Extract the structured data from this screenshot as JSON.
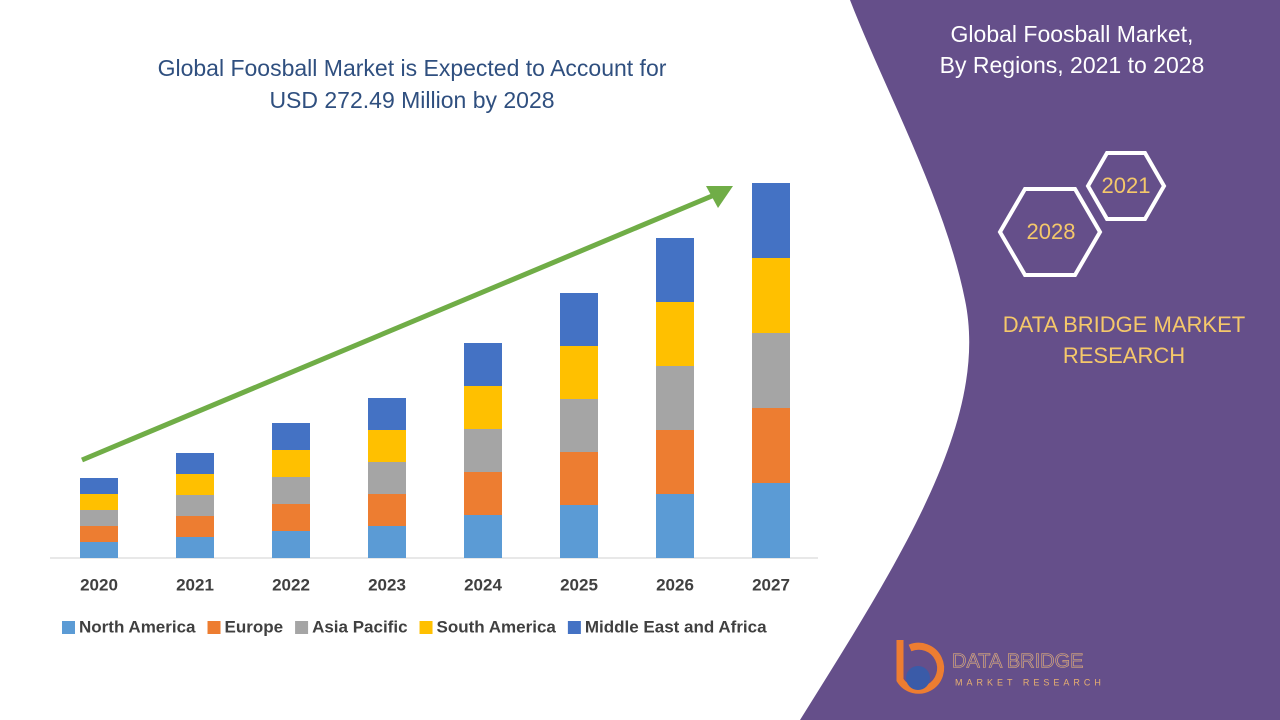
{
  "chart_data": {
    "type": "bar",
    "stacked": true,
    "title": "Global Foosball Market is Expected to Account for USD 272.49 Million by 2028",
    "categories": [
      "2020",
      "2021",
      "2022",
      "2023",
      "2024",
      "2025",
      "2026",
      "2027"
    ],
    "series": [
      {
        "name": "North America",
        "color": "#5b9bd5",
        "values": [
          16,
          21,
          27,
          32,
          43,
          53,
          64,
          75
        ]
      },
      {
        "name": "Europe",
        "color": "#ed7d31",
        "values": [
          16,
          21,
          27,
          32,
          43,
          53,
          64,
          75
        ]
      },
      {
        "name": "Asia Pacific",
        "color": "#a5a5a5",
        "values": [
          16,
          21,
          27,
          32,
          43,
          53,
          64,
          75
        ]
      },
      {
        "name": "South America",
        "color": "#ffc000",
        "values": [
          16,
          21,
          27,
          32,
          43,
          53,
          64,
          75
        ]
      },
      {
        "name": "Middle East and Africa",
        "color": "#4472c4",
        "values": [
          16,
          21,
          27,
          32,
          43,
          53,
          64,
          75
        ]
      }
    ],
    "ylim": [
      0,
      380
    ],
    "legend": "bottom"
  },
  "panel": {
    "title": [
      "Global Foosball Market,",
      "By Regions, 2021 to 2028"
    ],
    "hex_years": [
      "2021",
      "2028"
    ],
    "brand": [
      "DATA BRIDGE MARKET",
      "RESEARCH"
    ],
    "logo": [
      "DATA BRIDGE",
      "MARKET RESEARCH"
    ]
  }
}
